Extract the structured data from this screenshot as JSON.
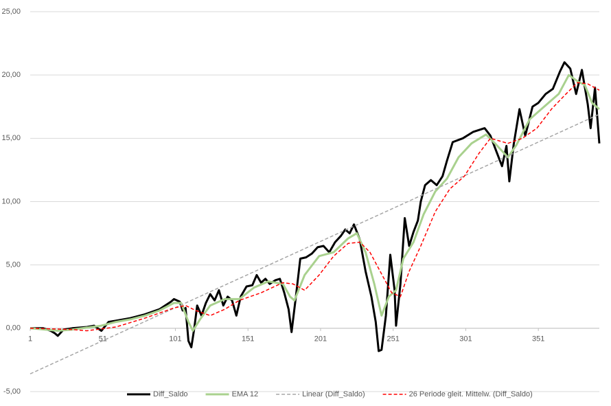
{
  "chart_data": {
    "type": "line",
    "xlim": [
      1,
      393
    ],
    "xticks": [
      1,
      51,
      101,
      151,
      201,
      251,
      301,
      351
    ],
    "ylim": [
      -5,
      25
    ],
    "yticks": [
      {
        "value": -5,
        "label": "-5,00"
      },
      {
        "value": 0,
        "label": "0,00"
      },
      {
        "value": 5,
        "label": "5,00"
      },
      {
        "value": 10,
        "label": "10,00"
      },
      {
        "value": 15,
        "label": "15,00"
      },
      {
        "value": 20,
        "label": "20,00"
      },
      {
        "value": 25,
        "label": "25,00"
      }
    ],
    "grid": true,
    "legend": "bottom",
    "series": [
      {
        "name": "Diff_Saldo",
        "color": "#000000",
        "style": "solid",
        "x": [
          1,
          10,
          15,
          18,
          20,
          24,
          30,
          40,
          45,
          50,
          55,
          60,
          70,
          80,
          90,
          98,
          100,
          104,
          106,
          108,
          110,
          112,
          114,
          116,
          119,
          122,
          125,
          128,
          131,
          134,
          137,
          140,
          143,
          146,
          150,
          154,
          157,
          160,
          163,
          166,
          170,
          173,
          176,
          179,
          181,
          184,
          187,
          191,
          195,
          199,
          203,
          207,
          211,
          215,
          218,
          221,
          224,
          228,
          232,
          236,
          239,
          241,
          243,
          246,
          249,
          252,
          253,
          256,
          259,
          262,
          265,
          268,
          270,
          273,
          277,
          281,
          285,
          288,
          292,
          299,
          306,
          314,
          318,
          322,
          326,
          329,
          331,
          334,
          338,
          342,
          347,
          351,
          356,
          361,
          366,
          369,
          373,
          377,
          381,
          385,
          387,
          390,
          393
        ],
        "values": [
          0,
          0,
          -0.2,
          -0.4,
          -0.6,
          -0.1,
          0,
          0.1,
          0.2,
          -0.2,
          0.5,
          0.6,
          0.8,
          1.1,
          1.5,
          2.1,
          2.3,
          2.1,
          1.4,
          1.6,
          -1.0,
          -1.5,
          0.0,
          1.8,
          1.0,
          2.0,
          2.7,
          2.2,
          3.0,
          1.8,
          2.5,
          2.2,
          1.0,
          2.5,
          3.3,
          3.4,
          4.2,
          3.6,
          3.9,
          3.5,
          3.8,
          3.9,
          2.8,
          1.5,
          -0.3,
          2.5,
          5.5,
          5.6,
          5.9,
          6.4,
          6.5,
          6.0,
          6.8,
          7.3,
          7.8,
          7.5,
          8.2,
          7.0,
          4.5,
          2.5,
          0.5,
          -1.8,
          -1.7,
          1.0,
          5.8,
          3.0,
          0.2,
          3.5,
          8.7,
          6.5,
          7.6,
          8.5,
          10.0,
          11.3,
          11.7,
          11.3,
          12.0,
          13.2,
          14.7,
          15.0,
          15.5,
          15.8,
          15.2,
          14.0,
          12.8,
          14.4,
          11.6,
          14.5,
          17.3,
          15.2,
          17.5,
          17.8,
          18.5,
          18.9,
          20.3,
          21.0,
          20.5,
          18.5,
          20.4,
          17.7,
          15.8,
          19.0,
          14.6
        ]
      },
      {
        "name": "EMA 12",
        "color": "#a9d18e",
        "style": "solid",
        "x": [
          1,
          20,
          30,
          50,
          60,
          70,
          80,
          90,
          100,
          105,
          110,
          113,
          118,
          125,
          135,
          145,
          155,
          165,
          175,
          180,
          183,
          190,
          200,
          210,
          220,
          226,
          232,
          238,
          243,
          248,
          253,
          258,
          265,
          272,
          280,
          288,
          296,
          305,
          315,
          322,
          330,
          336,
          345,
          355,
          365,
          372,
          378,
          383,
          388,
          393
        ],
        "values": [
          0,
          -0.2,
          -0.1,
          0.2,
          0.5,
          0.7,
          1.0,
          1.4,
          2.0,
          2.0,
          0.5,
          -0.2,
          0.7,
          1.8,
          2.3,
          2.3,
          3.2,
          3.7,
          3.5,
          2.5,
          2.2,
          4.2,
          5.7,
          6.0,
          7.1,
          7.5,
          6.0,
          3.5,
          1.0,
          2.5,
          3.0,
          5.5,
          6.8,
          9.0,
          10.8,
          11.8,
          13.5,
          14.6,
          15.3,
          14.5,
          13.5,
          14.5,
          16.5,
          17.5,
          18.5,
          20.0,
          19.5,
          19.2,
          17.8,
          17.3
        ]
      },
      {
        "name": "Linear (Diff_Saldo)",
        "color": "#a6a6a6",
        "style": "dashed",
        "x": [
          1,
          393
        ],
        "values": [
          -3.6,
          16.9
        ]
      },
      {
        "name": "26 Periode gleit. Mittelw. (Diff_Saldo)",
        "color": "#ff0000",
        "style": "dashed",
        "x": [
          1,
          30,
          40,
          60,
          80,
          100,
          108,
          115,
          125,
          135,
          145,
          160,
          175,
          182,
          190,
          200,
          210,
          220,
          228,
          235,
          242,
          250,
          256,
          262,
          270,
          280,
          290,
          300,
          310,
          318,
          330,
          340,
          350,
          360,
          370,
          378,
          385,
          393
        ],
        "values": [
          0,
          -0.1,
          -0.2,
          0.1,
          0.8,
          1.6,
          1.8,
          1.4,
          1.0,
          1.5,
          2.2,
          2.8,
          3.6,
          3.5,
          3.0,
          4.2,
          5.7,
          6.7,
          6.8,
          6.0,
          4.5,
          2.8,
          2.5,
          4.5,
          6.5,
          9.2,
          11.0,
          12.0,
          13.8,
          15.0,
          14.6,
          15.0,
          15.8,
          17.3,
          18.5,
          19.4,
          19.3,
          18.8
        ]
      }
    ]
  }
}
